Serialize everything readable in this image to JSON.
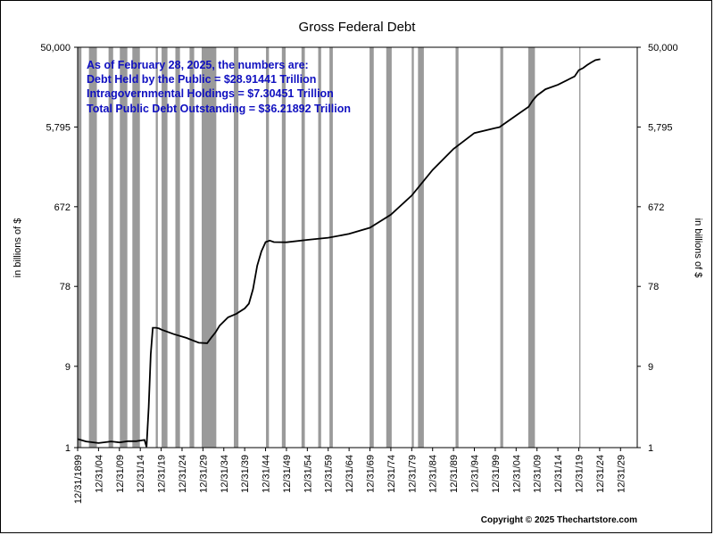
{
  "chart_data": {
    "type": "line",
    "title": "Gross Federal Debt",
    "ylabel": "in billions of $",
    "ylabel_right": "in billions of $",
    "yscale": "log",
    "ylim": [
      1,
      50000
    ],
    "yticks": [
      1,
      9,
      78,
      672,
      5795,
      50000
    ],
    "ytick_labels": [
      "1",
      "9",
      "78",
      "672",
      "5,795",
      "50,000"
    ],
    "xlim": [
      1899.997,
      2034
    ],
    "xtick_labels": [
      "12/31/1899",
      "12/31/04",
      "12/31/09",
      "12/31/14",
      "12/31/19",
      "12/31/24",
      "12/31/29",
      "12/31/34",
      "12/31/39",
      "12/31/44",
      "12/31/49",
      "12/31/54",
      "12/31/59",
      "12/31/64",
      "12/31/69",
      "12/31/74",
      "12/31/79",
      "12/31/84",
      "12/31/89",
      "12/31/94",
      "12/31/99",
      "12/31/04",
      "12/31/09",
      "12/31/14",
      "12/31/19",
      "12/31/24",
      "12/31/29"
    ],
    "grid": false,
    "shaded_periods": [
      [
        1899.5,
        1900.9
      ],
      [
        1902.7,
        1904.6
      ],
      [
        1907.4,
        1908.5
      ],
      [
        1910.1,
        1911.9
      ],
      [
        1913.1,
        1914.9
      ],
      [
        1918.7,
        1919.2
      ],
      [
        1920.1,
        1921.5
      ],
      [
        1923.4,
        1924.5
      ],
      [
        1926.8,
        1927.9
      ],
      [
        1929.7,
        1933.2
      ],
      [
        1937.4,
        1938.5
      ],
      [
        1945.1,
        1945.8
      ],
      [
        1948.9,
        1949.8
      ],
      [
        1953.6,
        1954.4
      ],
      [
        1957.6,
        1958.3
      ],
      [
        1960.3,
        1961.1
      ],
      [
        1969.9,
        1970.9
      ],
      [
        1973.9,
        1975.2
      ],
      [
        1980.0,
        1980.5
      ],
      [
        1981.5,
        1982.9
      ],
      [
        1990.5,
        1991.2
      ],
      [
        2001.2,
        2001.9
      ],
      [
        2007.9,
        2009.5
      ],
      [
        2020.1,
        2020.4
      ]
    ],
    "series": [
      {
        "x": [
          1900,
          1902,
          1905,
          1908,
          1910,
          1912,
          1914,
          1916,
          1916.5,
          1917,
          1917.5,
          1918,
          1918.8,
          1919.5,
          1920,
          1923,
          1926,
          1929,
          1931,
          1932,
          1933,
          1934,
          1936,
          1938,
          1940,
          1941,
          1942,
          1943,
          1944,
          1945,
          1946,
          1947,
          1950,
          1955,
          1960,
          1965,
          1970,
          1975,
          1980,
          1985,
          1990,
          1995,
          2000,
          2001,
          2005,
          2008,
          2009,
          2010,
          2012,
          2015,
          2018,
          2019,
          2020,
          2021,
          2022,
          2023,
          2024,
          2025.16
        ],
        "y": [
          1.26,
          1.18,
          1.13,
          1.18,
          1.15,
          1.19,
          1.19,
          1.23,
          1.02,
          2.98,
          12.5,
          25.5,
          25.5,
          25.0,
          24.3,
          21.5,
          19.4,
          17.0,
          16.8,
          19.5,
          22.5,
          27.0,
          33.8,
          37.2,
          43.0,
          49.0,
          72.4,
          136.7,
          201.0,
          258.7,
          269.4,
          258.3,
          257.4,
          274.4,
          290.5,
          322.3,
          380.9,
          541.9,
          908.4,
          1817.4,
          3206.3,
          4921.0,
          5628.7,
          5769.9,
          7905.3,
          10024.7,
          11909.8,
          13561.6,
          16066.2,
          18150.6,
          21516.1,
          22719.4,
          26945.4,
          28428.9,
          30928.9,
          33167.3,
          35464.4,
          36218.92
        ]
      }
    ],
    "annotations": [
      "As of February 28, 2025, the numbers are:",
      "Debt Held by the Public = $28.91441 Trillion",
      "Intragovernmental Holdings = $7.30451 Trillion",
      "Total Public Debt Outstanding = $36.21892 Trillion"
    ],
    "copyright": "Copyright © 2025 Thechartstore.com",
    "colors": {
      "line": "#000000",
      "shade": "#9a9a9a",
      "annotation": "#1010c0"
    }
  }
}
